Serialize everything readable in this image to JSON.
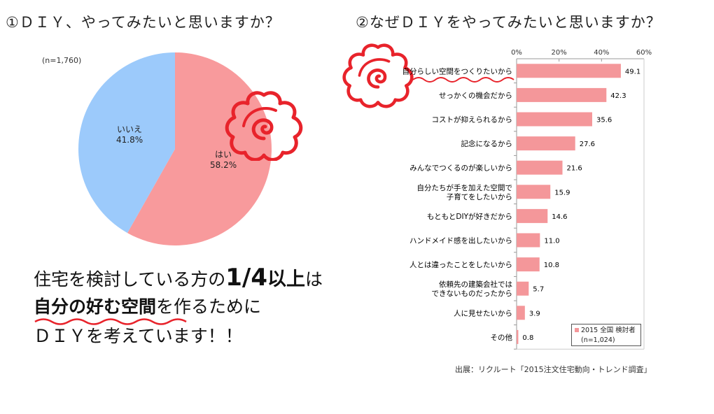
{
  "titles": {
    "left": "①ＤＩＹ、やってみたいと思いますか？",
    "right": "②なぜＤＩＹをやってみたいと思いますか？"
  },
  "pie": {
    "n_label": "(n=1,760)",
    "slices": [
      {
        "label": "はい",
        "value": 58.2,
        "value_text": "58.2%",
        "color": "#f89a9c"
      },
      {
        "label": "いいえ",
        "value": 41.8,
        "value_text": "41.8%",
        "color": "#9ccafb"
      }
    ]
  },
  "message": {
    "line1_a": "住宅を検討している方の",
    "line1_b": "1/4",
    "line1_c": "以上",
    "line1_d": "は",
    "line2_a": "自分の好む空間",
    "line2_b": "を作るために",
    "line3": "ＤＩＹを考えています！！"
  },
  "chart_data": [
    {
      "type": "pie",
      "categories": [
        "はい",
        "いいえ"
      ],
      "values": [
        58.2,
        41.8
      ],
      "title": "①ＤＩＹ、やってみたいと思いますか？",
      "annotation": "(n=1,760)"
    },
    {
      "type": "bar",
      "orientation": "horizontal",
      "title": "②なぜＤＩＹをやってみたいと思いますか？",
      "categories": [
        [
          "自分らしい空間をつくりたいから"
        ],
        [
          "せっかくの機会だから"
        ],
        [
          "コストが抑えられるから"
        ],
        [
          "記念になるから"
        ],
        [
          "みんなでつくるのが楽しいから"
        ],
        [
          "自分たちが手を加えた空間で",
          "子育てをしたいから"
        ],
        [
          "もともとDIYが好きだから"
        ],
        [
          "ハンドメイド感を出したいから"
        ],
        [
          "人とは違ったことをしたいから"
        ],
        [
          "依頼先の建築会社では",
          "できないものだったから"
        ],
        [
          "人に見せたいから"
        ],
        [
          "その他"
        ]
      ],
      "series": [
        {
          "name": "2015 全国 検討者",
          "values": [
            49.1,
            42.3,
            35.6,
            27.6,
            21.6,
            15.9,
            14.6,
            11.0,
            10.8,
            5.7,
            3.9,
            0.8
          ]
        }
      ],
      "value_labels": [
        "49.1",
        "42.3",
        "35.6",
        "27.6",
        "21.6",
        "15.9",
        "14.6",
        "11.0",
        "10.8",
        "5.7",
        "3.9",
        "0.8"
      ],
      "xlim": [
        0,
        60
      ],
      "xticks": [
        "0%",
        "20%",
        "40%",
        "60%"
      ],
      "legend_n": "(n=1,024)",
      "legend_position": "bottom-right",
      "bar_color": "#f4979a"
    }
  ],
  "source": "出展：リクルート「2015注文住宅動向・トレンド調査」"
}
